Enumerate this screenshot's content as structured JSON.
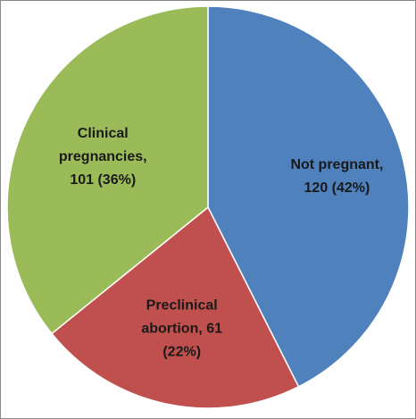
{
  "chart_data": {
    "type": "pie",
    "values": [
      120,
      61,
      101
    ],
    "value_labels": [
      [
        "Not pregnant,",
        "120 (42%)"
      ],
      [
        "Preclinical",
        "abortion, 61",
        "(22%)"
      ],
      [
        "Clinical",
        "pregnancies,",
        "101 (36%)"
      ]
    ],
    "colors": [
      "#4f81bd",
      "#c0504d",
      "#9bbb59"
    ]
  }
}
